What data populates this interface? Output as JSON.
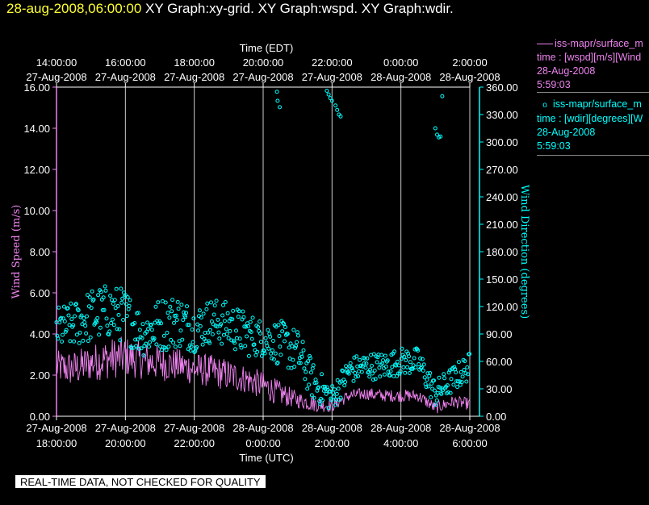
{
  "header": {
    "date": "28-aug-2008,06:00:00",
    "graphs": "XY Graph:xy-grid.  XY Graph:wspd.  XY Graph:wdir."
  },
  "legend": [
    {
      "line1": "iss-mapr/surface_m",
      "line2": "time : [wspd][m/s][Wind",
      "line3": "28-Aug-2008",
      "line4": "5:59:03",
      "color": "#ee82ee",
      "symbol": "line"
    },
    {
      "line1": "iss-mapr/surface_m",
      "line2": "time : [wdir][degrees][W",
      "line3": "28-Aug-2008",
      "line4": "5:59:03",
      "color": "#00ffff",
      "symbol": "o"
    }
  ],
  "disclaimer": "REAL-TIME DATA, NOT CHECKED FOR QUALITY",
  "chart_data": {
    "type": "line",
    "top_axis": {
      "label": "Time (EDT)",
      "ticks": [
        {
          "t": "14:00:00",
          "d": "27-Aug-2008"
        },
        {
          "t": "16:00:00",
          "d": "27-Aug-2008"
        },
        {
          "t": "18:00:00",
          "d": "27-Aug-2008"
        },
        {
          "t": "20:00:00",
          "d": "27-Aug-2008"
        },
        {
          "t": "22:00:00",
          "d": "27-Aug-2008"
        },
        {
          "t": "0:00:00",
          "d": "28-Aug-2008"
        },
        {
          "t": "2:00:00",
          "d": "28-Aug-2008"
        }
      ]
    },
    "bottom_axis": {
      "label": "Time (UTC)",
      "ticks": [
        {
          "d": "27-Aug-2008",
          "t": "18:00:00"
        },
        {
          "d": "27-Aug-2008",
          "t": "20:00:00"
        },
        {
          "d": "27-Aug-2008",
          "t": "22:00:00"
        },
        {
          "d": "28-Aug-2008",
          "t": "0:00:00"
        },
        {
          "d": "28-Aug-2008",
          "t": "2:00:00"
        },
        {
          "d": "28-Aug-2008",
          "t": "4:00:00"
        },
        {
          "d": "28-Aug-2008",
          "t": "6:00:00"
        }
      ]
    },
    "xlim_hours_utc": [
      18,
      30
    ],
    "left_axis": {
      "label": "Wind Speed (m/s)",
      "ylim": [
        0,
        16
      ],
      "ticks": [
        "0.00",
        "2.00",
        "4.00",
        "6.00",
        "8.00",
        "10.00",
        "12.00",
        "14.00",
        "16.00"
      ],
      "color": "#ee82ee"
    },
    "right_axis": {
      "label": "Wind Direction (degrees)",
      "ylim": [
        0,
        360
      ],
      "ticks": [
        "0.00",
        "30.00",
        "60.00",
        "90.00",
        "120.00",
        "150.00",
        "180.00",
        "210.00",
        "240.00",
        "270.00",
        "300.00",
        "330.00",
        "360.00"
      ],
      "color": "#00ffff"
    },
    "grid": {
      "vertical": true
    },
    "series": [
      {
        "name": "iss-mapr/surface_m time : [wspd][m/s][Wind",
        "axis": "left",
        "style": "line",
        "color": "#ee82ee",
        "x": [
          18.0,
          18.5,
          19.0,
          19.5,
          20.0,
          20.5,
          21.0,
          21.5,
          22.0,
          22.5,
          23.0,
          23.5,
          24.0,
          24.5,
          25.0,
          25.5,
          26.0,
          26.5,
          27.0,
          27.5,
          28.0,
          28.5,
          29.0,
          29.5,
          30.0
        ],
        "y": [
          2.4,
          2.3,
          2.6,
          2.8,
          2.9,
          2.7,
          2.6,
          2.5,
          2.3,
          2.2,
          2.0,
          1.8,
          1.5,
          1.1,
          0.8,
          0.6,
          0.5,
          1.0,
          1.1,
          1.0,
          1.0,
          1.0,
          0.4,
          0.7,
          0.6
        ],
        "amplitude": [
          0.8,
          0.9,
          0.9,
          1.0,
          1.0,
          0.9,
          0.9,
          0.8,
          0.8,
          0.8,
          0.8,
          0.7,
          0.7,
          0.6,
          0.4,
          0.4,
          0.3,
          0.3,
          0.3,
          0.3,
          0.3,
          0.3,
          0.3,
          0.3,
          0.3
        ]
      },
      {
        "name": "iss-mapr/surface_m time : [wdir][degrees][W",
        "axis": "right",
        "style": "scatter",
        "color": "#00ffff",
        "x": [
          18.0,
          18.5,
          19.0,
          19.5,
          20.0,
          20.5,
          21.0,
          21.5,
          22.0,
          22.5,
          23.0,
          23.5,
          24.0,
          24.5,
          25.0,
          25.5,
          26.0,
          26.5,
          27.0,
          27.5,
          28.0,
          28.5,
          29.0,
          29.5,
          30.0
        ],
        "y": [
          95,
          100,
          110,
          115,
          110,
          90,
          100,
          105,
          95,
          105,
          100,
          90,
          85,
          80,
          70,
          35,
          20,
          50,
          55,
          55,
          60,
          60,
          25,
          40,
          55
        ],
        "spread": [
          25,
          25,
          30,
          30,
          30,
          25,
          30,
          30,
          25,
          25,
          25,
          25,
          20,
          25,
          25,
          20,
          15,
          15,
          15,
          15,
          15,
          15,
          15,
          15,
          15
        ],
        "outliers": [
          {
            "x": 24.4,
            "y": 355
          },
          {
            "x": 24.42,
            "y": 345
          },
          {
            "x": 24.48,
            "y": 338
          },
          {
            "x": 25.85,
            "y": 356
          },
          {
            "x": 25.9,
            "y": 352
          },
          {
            "x": 25.95,
            "y": 348
          },
          {
            "x": 26.0,
            "y": 345
          },
          {
            "x": 26.1,
            "y": 340
          },
          {
            "x": 26.15,
            "y": 335
          },
          {
            "x": 26.2,
            "y": 330
          },
          {
            "x": 26.25,
            "y": 328
          },
          {
            "x": 29.0,
            "y": 315
          },
          {
            "x": 29.05,
            "y": 308
          },
          {
            "x": 29.1,
            "y": 305
          },
          {
            "x": 29.15,
            "y": 306
          },
          {
            "x": 29.2,
            "y": 350
          }
        ]
      }
    ]
  }
}
